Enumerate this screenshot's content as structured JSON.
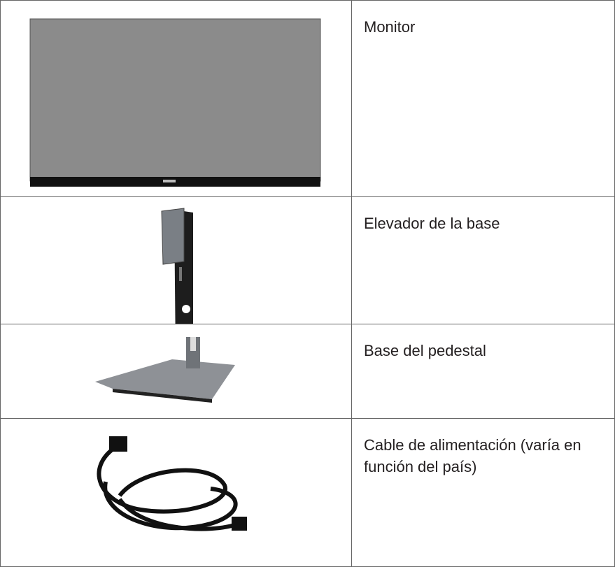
{
  "table": {
    "rows": [
      "Monitor",
      "Elevador de la base",
      "Base del pedestal",
      "Cable de alimentación (varía en función del país)"
    ]
  }
}
